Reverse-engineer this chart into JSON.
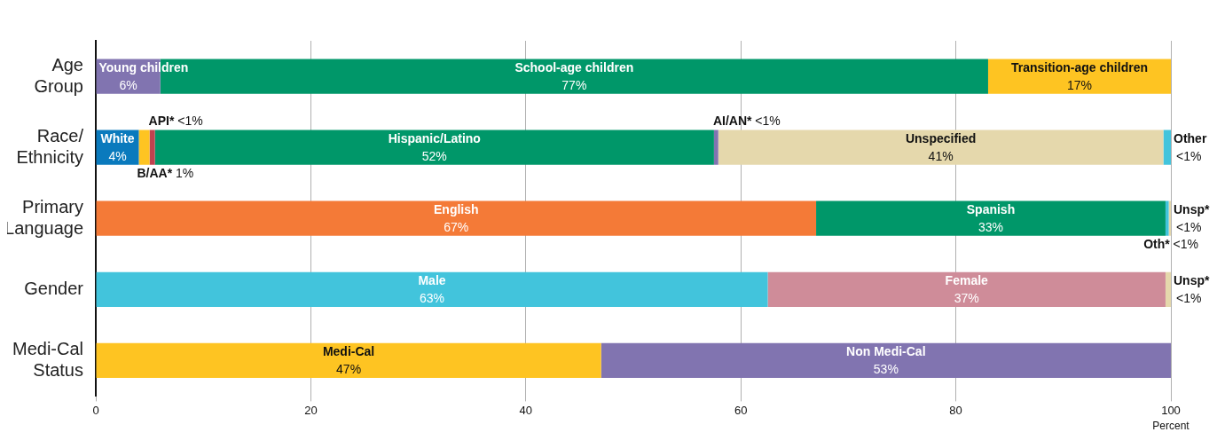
{
  "chart_data": {
    "type": "bar",
    "orientation": "horizontal",
    "stacked": true,
    "categories": [
      "Age Group",
      "Race/Ethnicity",
      "Primary Language",
      "Gender",
      "Medi-Cal Status"
    ],
    "xlabel": "Percent",
    "xlim": [
      0,
      100
    ],
    "xticks": [
      0,
      20,
      40,
      60,
      80,
      100
    ],
    "grid": "x",
    "legend": false,
    "series": [
      {
        "name": "Young children",
        "color": "#8174b0",
        "values": [
          6,
          null,
          null,
          null,
          null
        ],
        "value_labels": [
          "6%",
          null,
          null,
          null,
          null
        ]
      },
      {
        "name": "School-age children",
        "color": "#009769",
        "values": [
          77,
          null,
          null,
          null,
          null
        ],
        "value_labels": [
          "77%",
          null,
          null,
          null,
          null
        ]
      },
      {
        "name": "Transition-age children",
        "color": "#fec422",
        "values": [
          17,
          null,
          null,
          null,
          null
        ],
        "value_labels": [
          "17%",
          null,
          null,
          null,
          null
        ]
      },
      {
        "name": "White",
        "color": "#0a7abd",
        "values": [
          null,
          4,
          null,
          null,
          null
        ],
        "value_labels": [
          null,
          "4%",
          null,
          null,
          null
        ]
      },
      {
        "name": "B/AA*",
        "color": "#fec422",
        "values": [
          null,
          1,
          null,
          null,
          null
        ],
        "value_labels": [
          null,
          "1%",
          null,
          null,
          null
        ]
      },
      {
        "name": "API*",
        "color": "#c0424f",
        "values": [
          null,
          0.5,
          null,
          null,
          null
        ],
        "value_labels": [
          null,
          "<1%",
          null,
          null,
          null
        ]
      },
      {
        "name": "Hispanic/Latino",
        "color": "#009769",
        "values": [
          null,
          52,
          null,
          null,
          null
        ],
        "value_labels": [
          null,
          "52%",
          null,
          null,
          null
        ]
      },
      {
        "name": "AI/AN*",
        "color": "#8174b0",
        "values": [
          null,
          0.4,
          null,
          null,
          null
        ],
        "value_labels": [
          null,
          "<1%",
          null,
          null,
          null
        ]
      },
      {
        "name": "Unspecified",
        "color": "#e5d8ac",
        "values": [
          null,
          41.4,
          null,
          null,
          null
        ],
        "value_labels": [
          null,
          "41%",
          null,
          null,
          null
        ]
      },
      {
        "name": "Other",
        "color": "#42c4dc",
        "values": [
          null,
          0.7,
          null,
          null,
          null
        ],
        "value_labels": [
          null,
          "<1%",
          null,
          null,
          null
        ]
      },
      {
        "name": "English",
        "color": "#f47a37",
        "values": [
          null,
          null,
          67,
          null,
          null
        ],
        "value_labels": [
          null,
          null,
          "67%",
          null,
          null
        ]
      },
      {
        "name": "Spanish",
        "color": "#009769",
        "values": [
          null,
          null,
          32.5,
          null,
          null
        ],
        "value_labels": [
          null,
          null,
          "33%",
          null,
          null
        ]
      },
      {
        "name": "Oth*",
        "color": "#42c4dc",
        "values": [
          null,
          null,
          0.3,
          null,
          null
        ],
        "value_labels": [
          null,
          null,
          "<1%",
          null,
          null
        ]
      },
      {
        "name": "Unsp*",
        "color": "#e5d8ac",
        "values": [
          null,
          null,
          0.2,
          null,
          null
        ],
        "value_labels": [
          null,
          null,
          "<1%",
          null,
          null
        ]
      },
      {
        "name": "Male",
        "color": "#42c4dc",
        "values": [
          null,
          null,
          null,
          62.5,
          null
        ],
        "value_labels": [
          null,
          null,
          null,
          "63%",
          null
        ]
      },
      {
        "name": "Female",
        "color": "#cf8c99",
        "values": [
          null,
          null,
          null,
          37,
          null
        ],
        "value_labels": [
          null,
          null,
          null,
          "37%",
          null
        ]
      },
      {
        "name": "Unsp*",
        "color": "#e5d8ac",
        "values": [
          null,
          null,
          null,
          0.5,
          null
        ],
        "value_labels": [
          null,
          null,
          null,
          "<1%",
          null
        ]
      },
      {
        "name": "Medi-Cal",
        "color": "#fec422",
        "values": [
          null,
          null,
          null,
          null,
          47
        ],
        "value_labels": [
          null,
          null,
          null,
          null,
          "47%"
        ]
      },
      {
        "name": "Non Medi-Cal",
        "color": "#8174b0",
        "values": [
          null,
          null,
          null,
          null,
          53
        ],
        "value_labels": [
          null,
          null,
          null,
          null,
          "53%"
        ]
      }
    ]
  }
}
